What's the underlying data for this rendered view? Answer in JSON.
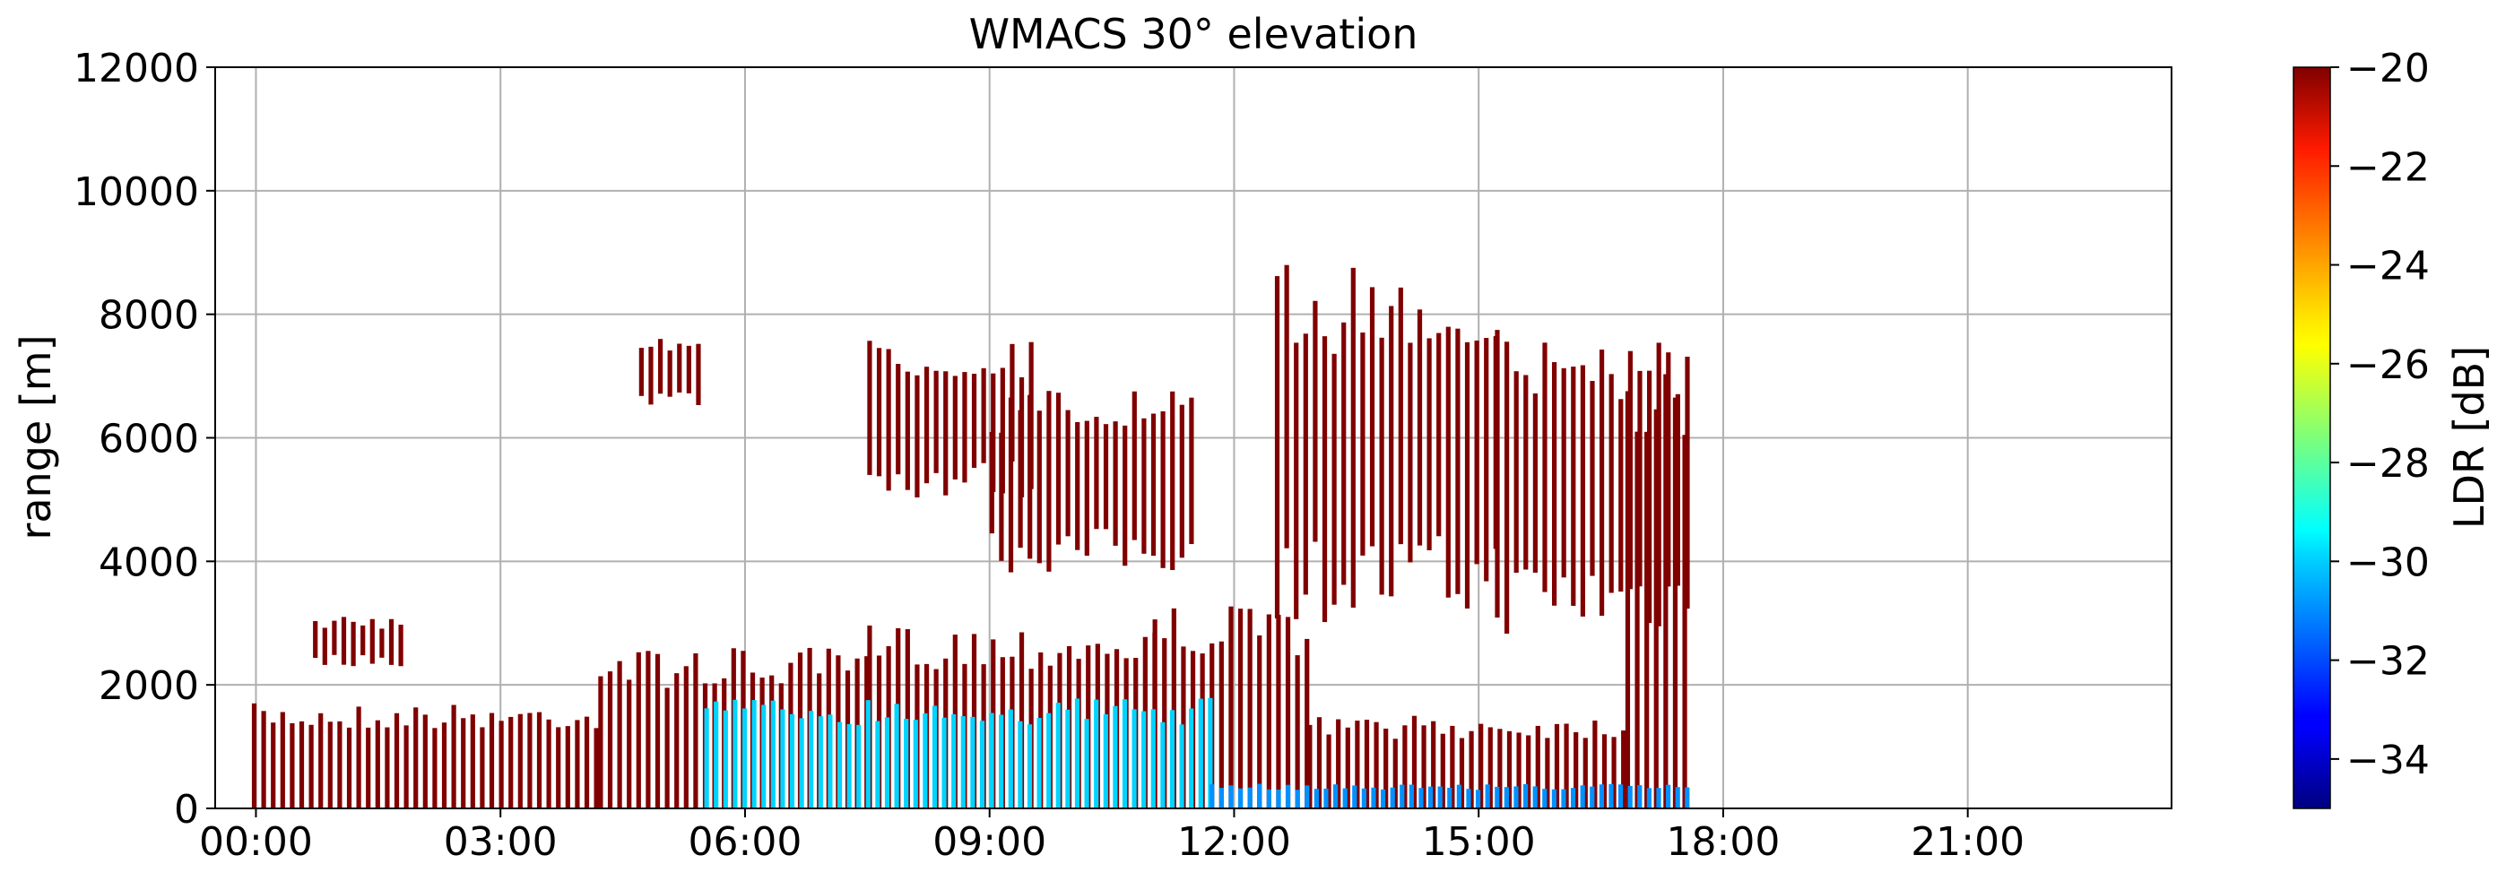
{
  "chart_data": {
    "type": "heatmap",
    "title": "WMACS 30° elevation",
    "xlabel": "",
    "ylabel": "range [m]",
    "grid": true,
    "x_range_hours": [
      -0.5,
      23.5
    ],
    "x_ticks": [
      {
        "hour": 0,
        "label": "00:00"
      },
      {
        "hour": 3,
        "label": "03:00"
      },
      {
        "hour": 6,
        "label": "06:00"
      },
      {
        "hour": 9,
        "label": "09:00"
      },
      {
        "hour": 12,
        "label": "12:00"
      },
      {
        "hour": 15,
        "label": "15:00"
      },
      {
        "hour": 18,
        "label": "18:00"
      },
      {
        "hour": 21,
        "label": "21:00"
      }
    ],
    "ylim": [
      0,
      12000
    ],
    "y_ticks": [
      0,
      2000,
      4000,
      6000,
      8000,
      10000,
      12000
    ],
    "colorbar": {
      "label": "LDR [dB]",
      "range": [
        -35,
        -20
      ],
      "ticks": [
        -34,
        -32,
        -30,
        -28,
        -26,
        -24,
        -22,
        -20
      ],
      "colormap": "jet"
    },
    "data_end_hour": 17.55,
    "cloud_regions": [
      {
        "desc": "low cloud",
        "t_start": -0.05,
        "t_end": 4.2,
        "z_min": 0,
        "z_max": 1700,
        "ldr": -20
      },
      {
        "desc": "low cloud",
        "t_start": 4.2,
        "t_end": 7.5,
        "z_min": 0,
        "z_max": 2600,
        "ldr": -20
      },
      {
        "desc": "low cloud",
        "t_start": 7.5,
        "t_end": 11.0,
        "z_min": 0,
        "z_max": 3000,
        "ldr": -20
      },
      {
        "desc": "low cloud",
        "t_start": 11.0,
        "t_end": 12.9,
        "z_min": 0,
        "z_max": 3300,
        "ldr": -20
      },
      {
        "desc": "low cloud",
        "t_start": 12.9,
        "t_end": 16.8,
        "z_min": 0,
        "z_max": 1500,
        "ldr": -20
      },
      {
        "desc": "low cloud",
        "t_start": 16.8,
        "t_end": 17.55,
        "z_min": 0,
        "z_max": 7800,
        "ldr": -20
      },
      {
        "desc": "scattered echo",
        "t_start": 0.7,
        "t_end": 1.8,
        "z_min": 2300,
        "z_max": 3100,
        "ldr": -20
      },
      {
        "desc": "scattered echo",
        "t_start": 4.7,
        "t_end": 5.5,
        "z_min": 6500,
        "z_max": 7700,
        "ldr": -20
      },
      {
        "desc": "mid-level cloud",
        "t_start": 7.5,
        "t_end": 9.5,
        "z_min": 5000,
        "z_max": 7600,
        "ldr": -20
      },
      {
        "desc": "mid-level cloud",
        "t_start": 9.0,
        "t_end": 11.5,
        "z_min": 3800,
        "z_max": 6800,
        "ldr": -20
      },
      {
        "desc": "upper cloud",
        "t_start": 12.5,
        "t_end": 15.2,
        "z_min": 3000,
        "z_max": 8800,
        "ldr": -20
      },
      {
        "desc": "upper cloud",
        "t_start": 15.2,
        "t_end": 17.55,
        "z_min": 2800,
        "z_max": 7800,
        "ldr": -20
      },
      {
        "desc": "drizzle/rain near surface",
        "t_start": 5.5,
        "t_end": 11.7,
        "z_min": 0,
        "z_max": 1800,
        "ldr": -30
      },
      {
        "desc": "near-surface echo",
        "t_start": 11.7,
        "t_end": 17.55,
        "z_min": 0,
        "z_max": 400,
        "ldr": -31
      }
    ]
  }
}
